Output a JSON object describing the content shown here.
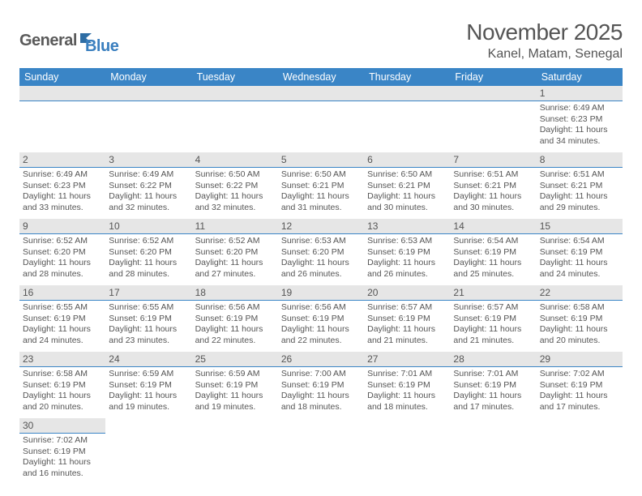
{
  "logo": {
    "part1": "General",
    "part2": "Blue"
  },
  "title": "November 2025",
  "location": "Kanel, Matam, Senegal",
  "colors": {
    "header_bg": "#3a85c6",
    "header_text": "#ffffff",
    "dayhead_bg": "#e6e6e6",
    "rule": "#3a85c6",
    "text": "#555555",
    "logo_gray": "#5a5a5a",
    "logo_blue": "#3a7fbf"
  },
  "weekdays": [
    "Sunday",
    "Monday",
    "Tuesday",
    "Wednesday",
    "Thursday",
    "Friday",
    "Saturday"
  ],
  "weeks": [
    [
      {
        "n": "",
        "lines": [
          "",
          "",
          "",
          ""
        ]
      },
      {
        "n": "",
        "lines": [
          "",
          "",
          "",
          ""
        ]
      },
      {
        "n": "",
        "lines": [
          "",
          "",
          "",
          ""
        ]
      },
      {
        "n": "",
        "lines": [
          "",
          "",
          "",
          ""
        ]
      },
      {
        "n": "",
        "lines": [
          "",
          "",
          "",
          ""
        ]
      },
      {
        "n": "",
        "lines": [
          "",
          "",
          "",
          ""
        ]
      },
      {
        "n": "1",
        "lines": [
          "Sunrise: 6:49 AM",
          "Sunset: 6:23 PM",
          "Daylight: 11 hours",
          "and 34 minutes."
        ]
      }
    ],
    [
      {
        "n": "2",
        "lines": [
          "Sunrise: 6:49 AM",
          "Sunset: 6:23 PM",
          "Daylight: 11 hours",
          "and 33 minutes."
        ]
      },
      {
        "n": "3",
        "lines": [
          "Sunrise: 6:49 AM",
          "Sunset: 6:22 PM",
          "Daylight: 11 hours",
          "and 32 minutes."
        ]
      },
      {
        "n": "4",
        "lines": [
          "Sunrise: 6:50 AM",
          "Sunset: 6:22 PM",
          "Daylight: 11 hours",
          "and 32 minutes."
        ]
      },
      {
        "n": "5",
        "lines": [
          "Sunrise: 6:50 AM",
          "Sunset: 6:21 PM",
          "Daylight: 11 hours",
          "and 31 minutes."
        ]
      },
      {
        "n": "6",
        "lines": [
          "Sunrise: 6:50 AM",
          "Sunset: 6:21 PM",
          "Daylight: 11 hours",
          "and 30 minutes."
        ]
      },
      {
        "n": "7",
        "lines": [
          "Sunrise: 6:51 AM",
          "Sunset: 6:21 PM",
          "Daylight: 11 hours",
          "and 30 minutes."
        ]
      },
      {
        "n": "8",
        "lines": [
          "Sunrise: 6:51 AM",
          "Sunset: 6:21 PM",
          "Daylight: 11 hours",
          "and 29 minutes."
        ]
      }
    ],
    [
      {
        "n": "9",
        "lines": [
          "Sunrise: 6:52 AM",
          "Sunset: 6:20 PM",
          "Daylight: 11 hours",
          "and 28 minutes."
        ]
      },
      {
        "n": "10",
        "lines": [
          "Sunrise: 6:52 AM",
          "Sunset: 6:20 PM",
          "Daylight: 11 hours",
          "and 28 minutes."
        ]
      },
      {
        "n": "11",
        "lines": [
          "Sunrise: 6:52 AM",
          "Sunset: 6:20 PM",
          "Daylight: 11 hours",
          "and 27 minutes."
        ]
      },
      {
        "n": "12",
        "lines": [
          "Sunrise: 6:53 AM",
          "Sunset: 6:20 PM",
          "Daylight: 11 hours",
          "and 26 minutes."
        ]
      },
      {
        "n": "13",
        "lines": [
          "Sunrise: 6:53 AM",
          "Sunset: 6:19 PM",
          "Daylight: 11 hours",
          "and 26 minutes."
        ]
      },
      {
        "n": "14",
        "lines": [
          "Sunrise: 6:54 AM",
          "Sunset: 6:19 PM",
          "Daylight: 11 hours",
          "and 25 minutes."
        ]
      },
      {
        "n": "15",
        "lines": [
          "Sunrise: 6:54 AM",
          "Sunset: 6:19 PM",
          "Daylight: 11 hours",
          "and 24 minutes."
        ]
      }
    ],
    [
      {
        "n": "16",
        "lines": [
          "Sunrise: 6:55 AM",
          "Sunset: 6:19 PM",
          "Daylight: 11 hours",
          "and 24 minutes."
        ]
      },
      {
        "n": "17",
        "lines": [
          "Sunrise: 6:55 AM",
          "Sunset: 6:19 PM",
          "Daylight: 11 hours",
          "and 23 minutes."
        ]
      },
      {
        "n": "18",
        "lines": [
          "Sunrise: 6:56 AM",
          "Sunset: 6:19 PM",
          "Daylight: 11 hours",
          "and 22 minutes."
        ]
      },
      {
        "n": "19",
        "lines": [
          "Sunrise: 6:56 AM",
          "Sunset: 6:19 PM",
          "Daylight: 11 hours",
          "and 22 minutes."
        ]
      },
      {
        "n": "20",
        "lines": [
          "Sunrise: 6:57 AM",
          "Sunset: 6:19 PM",
          "Daylight: 11 hours",
          "and 21 minutes."
        ]
      },
      {
        "n": "21",
        "lines": [
          "Sunrise: 6:57 AM",
          "Sunset: 6:19 PM",
          "Daylight: 11 hours",
          "and 21 minutes."
        ]
      },
      {
        "n": "22",
        "lines": [
          "Sunrise: 6:58 AM",
          "Sunset: 6:19 PM",
          "Daylight: 11 hours",
          "and 20 minutes."
        ]
      }
    ],
    [
      {
        "n": "23",
        "lines": [
          "Sunrise: 6:58 AM",
          "Sunset: 6:19 PM",
          "Daylight: 11 hours",
          "and 20 minutes."
        ]
      },
      {
        "n": "24",
        "lines": [
          "Sunrise: 6:59 AM",
          "Sunset: 6:19 PM",
          "Daylight: 11 hours",
          "and 19 minutes."
        ]
      },
      {
        "n": "25",
        "lines": [
          "Sunrise: 6:59 AM",
          "Sunset: 6:19 PM",
          "Daylight: 11 hours",
          "and 19 minutes."
        ]
      },
      {
        "n": "26",
        "lines": [
          "Sunrise: 7:00 AM",
          "Sunset: 6:19 PM",
          "Daylight: 11 hours",
          "and 18 minutes."
        ]
      },
      {
        "n": "27",
        "lines": [
          "Sunrise: 7:01 AM",
          "Sunset: 6:19 PM",
          "Daylight: 11 hours",
          "and 18 minutes."
        ]
      },
      {
        "n": "28",
        "lines": [
          "Sunrise: 7:01 AM",
          "Sunset: 6:19 PM",
          "Daylight: 11 hours",
          "and 17 minutes."
        ]
      },
      {
        "n": "29",
        "lines": [
          "Sunrise: 7:02 AM",
          "Sunset: 6:19 PM",
          "Daylight: 11 hours",
          "and 17 minutes."
        ]
      }
    ],
    [
      {
        "n": "30",
        "lines": [
          "Sunrise: 7:02 AM",
          "Sunset: 6:19 PM",
          "Daylight: 11 hours",
          "and 16 minutes."
        ]
      },
      {
        "n": "",
        "lines": [
          "",
          "",
          "",
          ""
        ]
      },
      {
        "n": "",
        "lines": [
          "",
          "",
          "",
          ""
        ]
      },
      {
        "n": "",
        "lines": [
          "",
          "",
          "",
          ""
        ]
      },
      {
        "n": "",
        "lines": [
          "",
          "",
          "",
          ""
        ]
      },
      {
        "n": "",
        "lines": [
          "",
          "",
          "",
          ""
        ]
      },
      {
        "n": "",
        "lines": [
          "",
          "",
          "",
          ""
        ]
      }
    ]
  ]
}
